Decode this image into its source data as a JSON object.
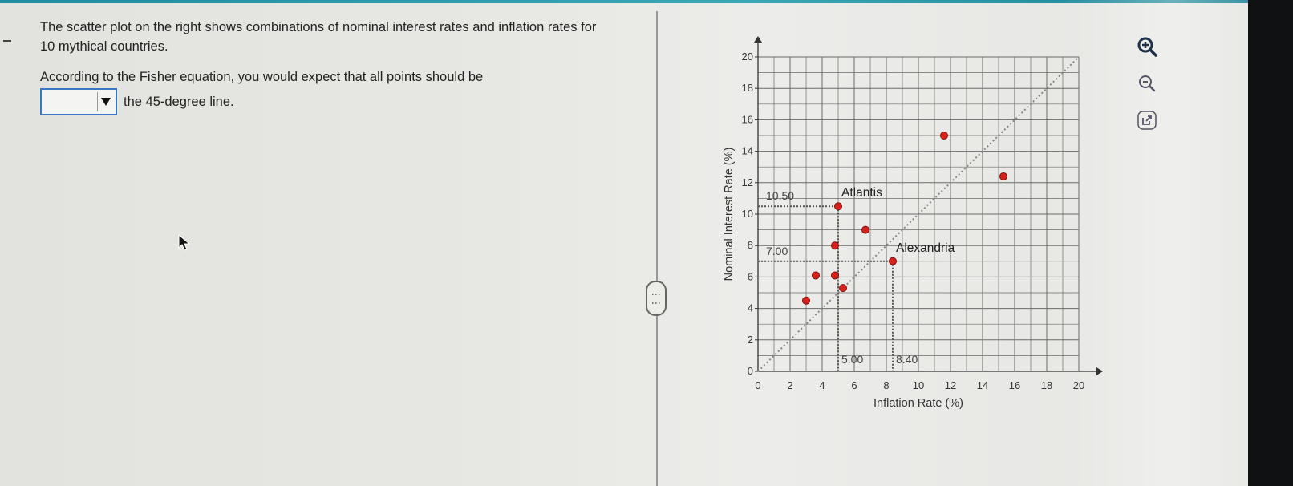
{
  "question": {
    "text1": "The scatter plot on the right shows combinations of nominal interest rates and inflation rates for 10 mythical countries.",
    "text2": "According to the Fisher equation, you would expect that all points should be",
    "after_dropdown": "the 45-degree line.",
    "dropdown_value": ""
  },
  "toolbar": {
    "zoom_in_icon": "zoom-in-icon",
    "zoom_out_icon": "zoom-out-icon",
    "popout_icon": "external-link-icon"
  },
  "colors": {
    "point": "#d9211c",
    "accent": "#3a78c2",
    "grid": "#666666"
  },
  "chart_data": {
    "type": "scatter",
    "xlabel": "Inflation Rate (%)",
    "ylabel": "Nominal Interest Rate (%)",
    "xlim": [
      0,
      20
    ],
    "ylim": [
      0,
      20
    ],
    "xticks": [
      0,
      2,
      4,
      6,
      8,
      10,
      12,
      14,
      16,
      18,
      20
    ],
    "yticks": [
      0,
      2,
      4,
      6,
      8,
      10,
      12,
      14,
      16,
      18,
      20
    ],
    "grid": true,
    "reference_line": {
      "from": [
        0,
        0
      ],
      "to": [
        20,
        20
      ]
    },
    "points": [
      {
        "x": 3.0,
        "y": 4.5
      },
      {
        "x": 3.6,
        "y": 6.1
      },
      {
        "x": 4.8,
        "y": 8.0
      },
      {
        "x": 4.8,
        "y": 6.1
      },
      {
        "x": 5.3,
        "y": 5.3
      },
      {
        "x": 5.0,
        "y": 10.5,
        "label": "Atlantis"
      },
      {
        "x": 6.7,
        "y": 9.0
      },
      {
        "x": 8.4,
        "y": 7.0,
        "label": "Alexandria"
      },
      {
        "x": 11.6,
        "y": 15.0
      },
      {
        "x": 15.3,
        "y": 12.4
      }
    ],
    "guides": [
      {
        "x": 5.0,
        "y": 10.5,
        "xlabel": "5.00",
        "ylabel": "10.50"
      },
      {
        "x": 8.4,
        "y": 7.0,
        "xlabel": "8.40",
        "ylabel": "7.00"
      }
    ]
  }
}
